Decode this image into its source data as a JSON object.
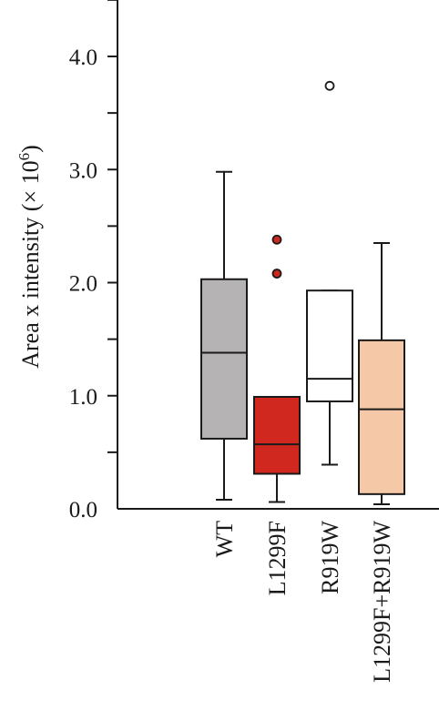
{
  "chart_data": {
    "type": "boxplot",
    "ylabel_main": "Area x intensity (× 10",
    "ylabel_exp": "6",
    "ylabel_close": ")",
    "ylim": [
      0,
      4.5
    ],
    "yticks": [
      0,
      1,
      2,
      3,
      4
    ],
    "ytick_labels": [
      "0.0",
      "1.0",
      "2.0",
      "3.0",
      "4.0"
    ],
    "categories": [
      "WT",
      "L1299F",
      "R919W",
      "L1299F+R919W"
    ],
    "boxes": [
      {
        "category": "WT",
        "min": 0.08,
        "q1": 0.62,
        "median": 1.38,
        "q3": 2.03,
        "max": 2.98,
        "outliers": [],
        "color": "#b5b3b3"
      },
      {
        "category": "L1299F",
        "min": 0.06,
        "q1": 0.31,
        "median": 0.57,
        "q3": 0.99,
        "max": 0.99,
        "outliers": [
          2.08,
          2.38
        ],
        "color": "#d0281e"
      },
      {
        "category": "R919W",
        "min": 0.39,
        "q1": 0.95,
        "median": 1.15,
        "q3": 1.93,
        "max": 1.93,
        "outliers": [
          3.74
        ],
        "color": "#ffffff"
      },
      {
        "category": "L1299F+R919W",
        "min": 0.04,
        "q1": 0.13,
        "median": 0.88,
        "q3": 1.49,
        "max": 2.35,
        "outliers": [],
        "color": "#f5c9a8"
      }
    ]
  }
}
